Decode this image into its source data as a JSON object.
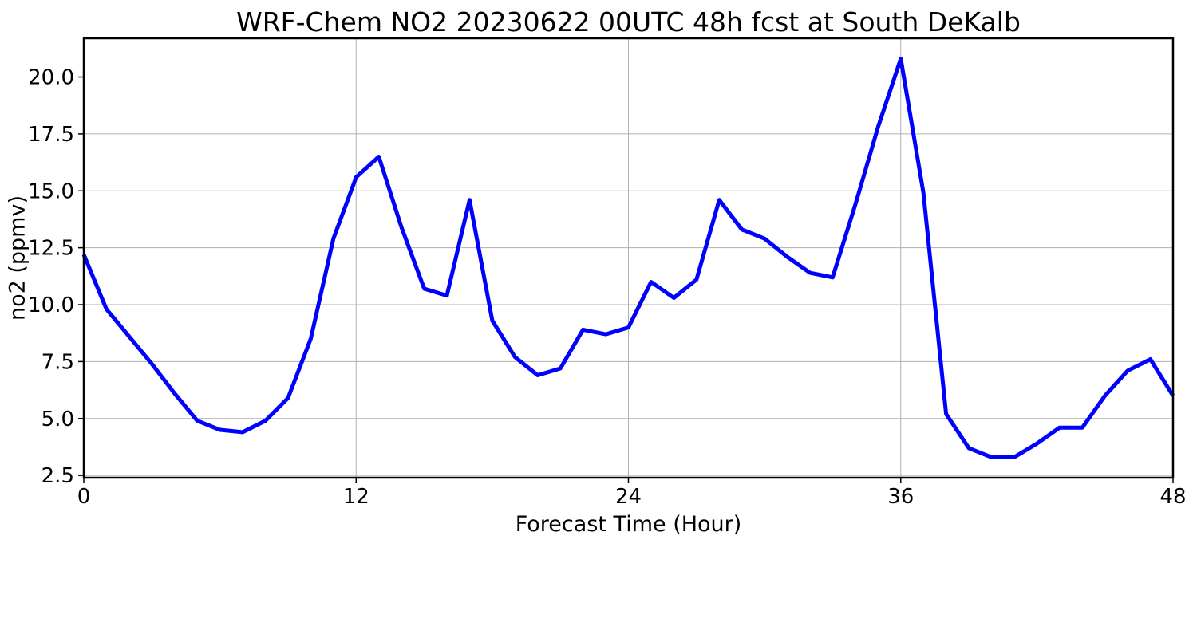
{
  "chart_data": {
    "type": "line",
    "title": "WRF-Chem NO2  20230622 00UTC 48h fcst at South DeKalb",
    "xlabel": "Forecast Time (Hour)",
    "ylabel": "no2  (ppmv)",
    "xlim": [
      0,
      48
    ],
    "ylim": [
      2.4,
      21.7
    ],
    "xticks": [
      0,
      12,
      24,
      36,
      48
    ],
    "yticks": [
      2.5,
      5.0,
      7.5,
      10.0,
      12.5,
      15.0,
      17.5,
      20.0
    ],
    "x_tick_labels": [
      "0",
      "12",
      "24",
      "36",
      "48"
    ],
    "y_tick_labels": [
      "2.5",
      "5.0",
      "7.5",
      "10.0",
      "12.5",
      "15.0",
      "17.5",
      "20.0"
    ],
    "grid": true,
    "series": [
      {
        "color": "#0000ff",
        "x": [
          0,
          1,
          2,
          3,
          4,
          5,
          6,
          7,
          8,
          9,
          10,
          11,
          12,
          13,
          14,
          15,
          16,
          17,
          18,
          19,
          20,
          21,
          22,
          23,
          24,
          25,
          26,
          27,
          28,
          29,
          30,
          31,
          32,
          33,
          34,
          35,
          36,
          37,
          38,
          39,
          40,
          41,
          42,
          43,
          44,
          45,
          46,
          47,
          48
        ],
        "values": [
          12.2,
          9.8,
          8.6,
          7.4,
          6.1,
          4.9,
          4.5,
          4.4,
          4.9,
          5.9,
          8.5,
          12.9,
          15.6,
          16.5,
          13.4,
          10.7,
          10.4,
          14.6,
          9.3,
          7.7,
          6.9,
          7.2,
          8.9,
          8.7,
          9.0,
          11.0,
          10.3,
          11.1,
          14.6,
          13.3,
          12.9,
          12.1,
          11.4,
          11.2,
          14.4,
          17.8,
          20.8,
          14.9,
          5.2,
          3.7,
          3.3,
          3.3,
          3.9,
          4.6,
          4.6,
          6.0,
          7.1,
          7.6,
          6.0
        ]
      }
    ]
  }
}
